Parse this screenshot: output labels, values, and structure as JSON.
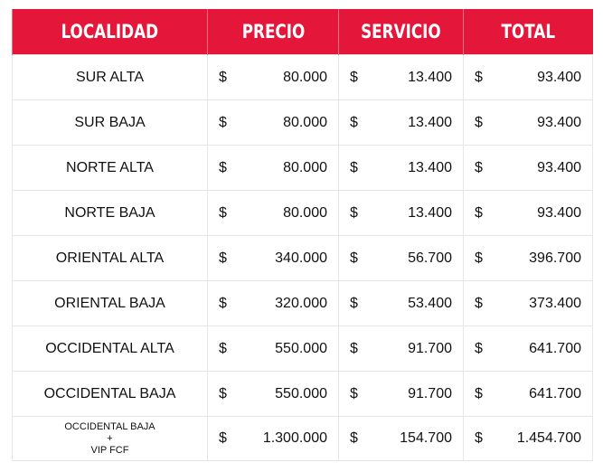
{
  "header": {
    "localidad": "LOCALIDAD",
    "precio": "PRECIO",
    "servicio": "SERVICIO",
    "total": "TOTAL"
  },
  "currency": "$",
  "accent_color": "#E4163A",
  "rows": [
    {
      "localidad": "SUR ALTA",
      "precio": "80.000",
      "servicio": "13.400",
      "total": "93.400"
    },
    {
      "localidad": "SUR BAJA",
      "precio": "80.000",
      "servicio": "13.400",
      "total": "93.400"
    },
    {
      "localidad": "NORTE ALTA",
      "precio": "80.000",
      "servicio": "13.400",
      "total": "93.400"
    },
    {
      "localidad": "NORTE BAJA",
      "precio": "80.000",
      "servicio": "13.400",
      "total": "93.400"
    },
    {
      "localidad": "ORIENTAL ALTA",
      "precio": "340.000",
      "servicio": "56.700",
      "total": "396.700"
    },
    {
      "localidad": "ORIENTAL BAJA",
      "precio": "320.000",
      "servicio": "53.400",
      "total": "373.400"
    },
    {
      "localidad": "OCCIDENTAL ALTA",
      "precio": "550.000",
      "servicio": "91.700",
      "total": "641.700"
    },
    {
      "localidad": "OCCIDENTAL BAJA",
      "precio": "550.000",
      "servicio": "91.700",
      "total": "641.700"
    },
    {
      "localidad_lines": [
        "OCCIDENTAL BAJA",
        "+",
        "VIP FCF"
      ],
      "precio": "1.300.000",
      "servicio": "154.700",
      "total": "1.454.700"
    }
  ]
}
